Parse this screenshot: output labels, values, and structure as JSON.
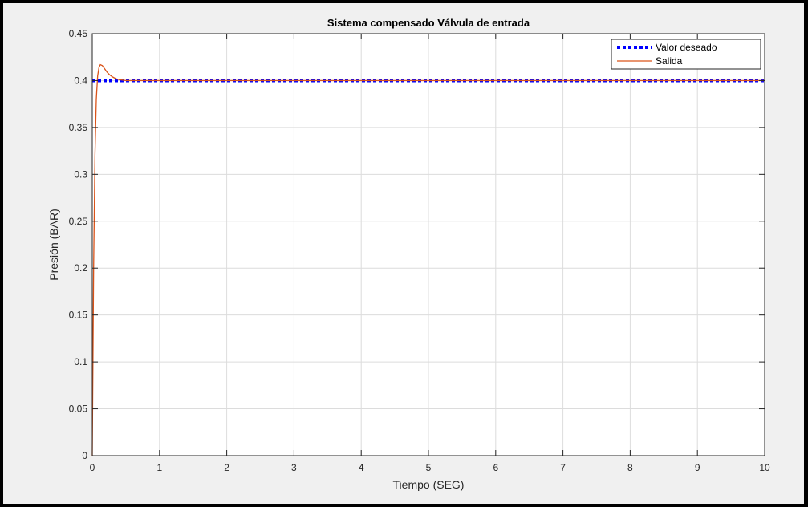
{
  "chart_data": {
    "type": "line",
    "title": "Sistema compensado Válvula de entrada",
    "xlabel": "Tiempo (SEG)",
    "ylabel": "Presión (BAR)",
    "xlim": [
      0,
      10
    ],
    "ylim": [
      0,
      0.45
    ],
    "xticks": [
      "0",
      "1",
      "2",
      "3",
      "4",
      "5",
      "6",
      "7",
      "8",
      "9",
      "10"
    ],
    "yticks": [
      "0",
      "0.05",
      "0.1",
      "0.15",
      "0.2",
      "0.25",
      "0.3",
      "0.35",
      "0.4",
      "0.45"
    ],
    "grid": true,
    "legend_position": "top-right",
    "series": [
      {
        "name": "Valor deseado",
        "style": "dotted",
        "color": "#0000ff",
        "x": [
          0,
          10
        ],
        "y": [
          0.4,
          0.4
        ]
      },
      {
        "name": "Salida",
        "style": "solid",
        "color": "#d95319",
        "x": [
          0,
          0.02,
          0.04,
          0.06,
          0.08,
          0.1,
          0.12,
          0.15,
          0.18,
          0.22,
          0.26,
          0.3,
          0.35,
          0.4,
          0.5,
          0.6,
          0.8,
          1,
          2,
          4,
          6,
          8,
          10
        ],
        "y": [
          0,
          0.2,
          0.32,
          0.38,
          0.405,
          0.414,
          0.417,
          0.416,
          0.413,
          0.409,
          0.406,
          0.404,
          0.402,
          0.401,
          0.4,
          0.4,
          0.4,
          0.4,
          0.4,
          0.4,
          0.4,
          0.4,
          0.4
        ]
      }
    ]
  }
}
